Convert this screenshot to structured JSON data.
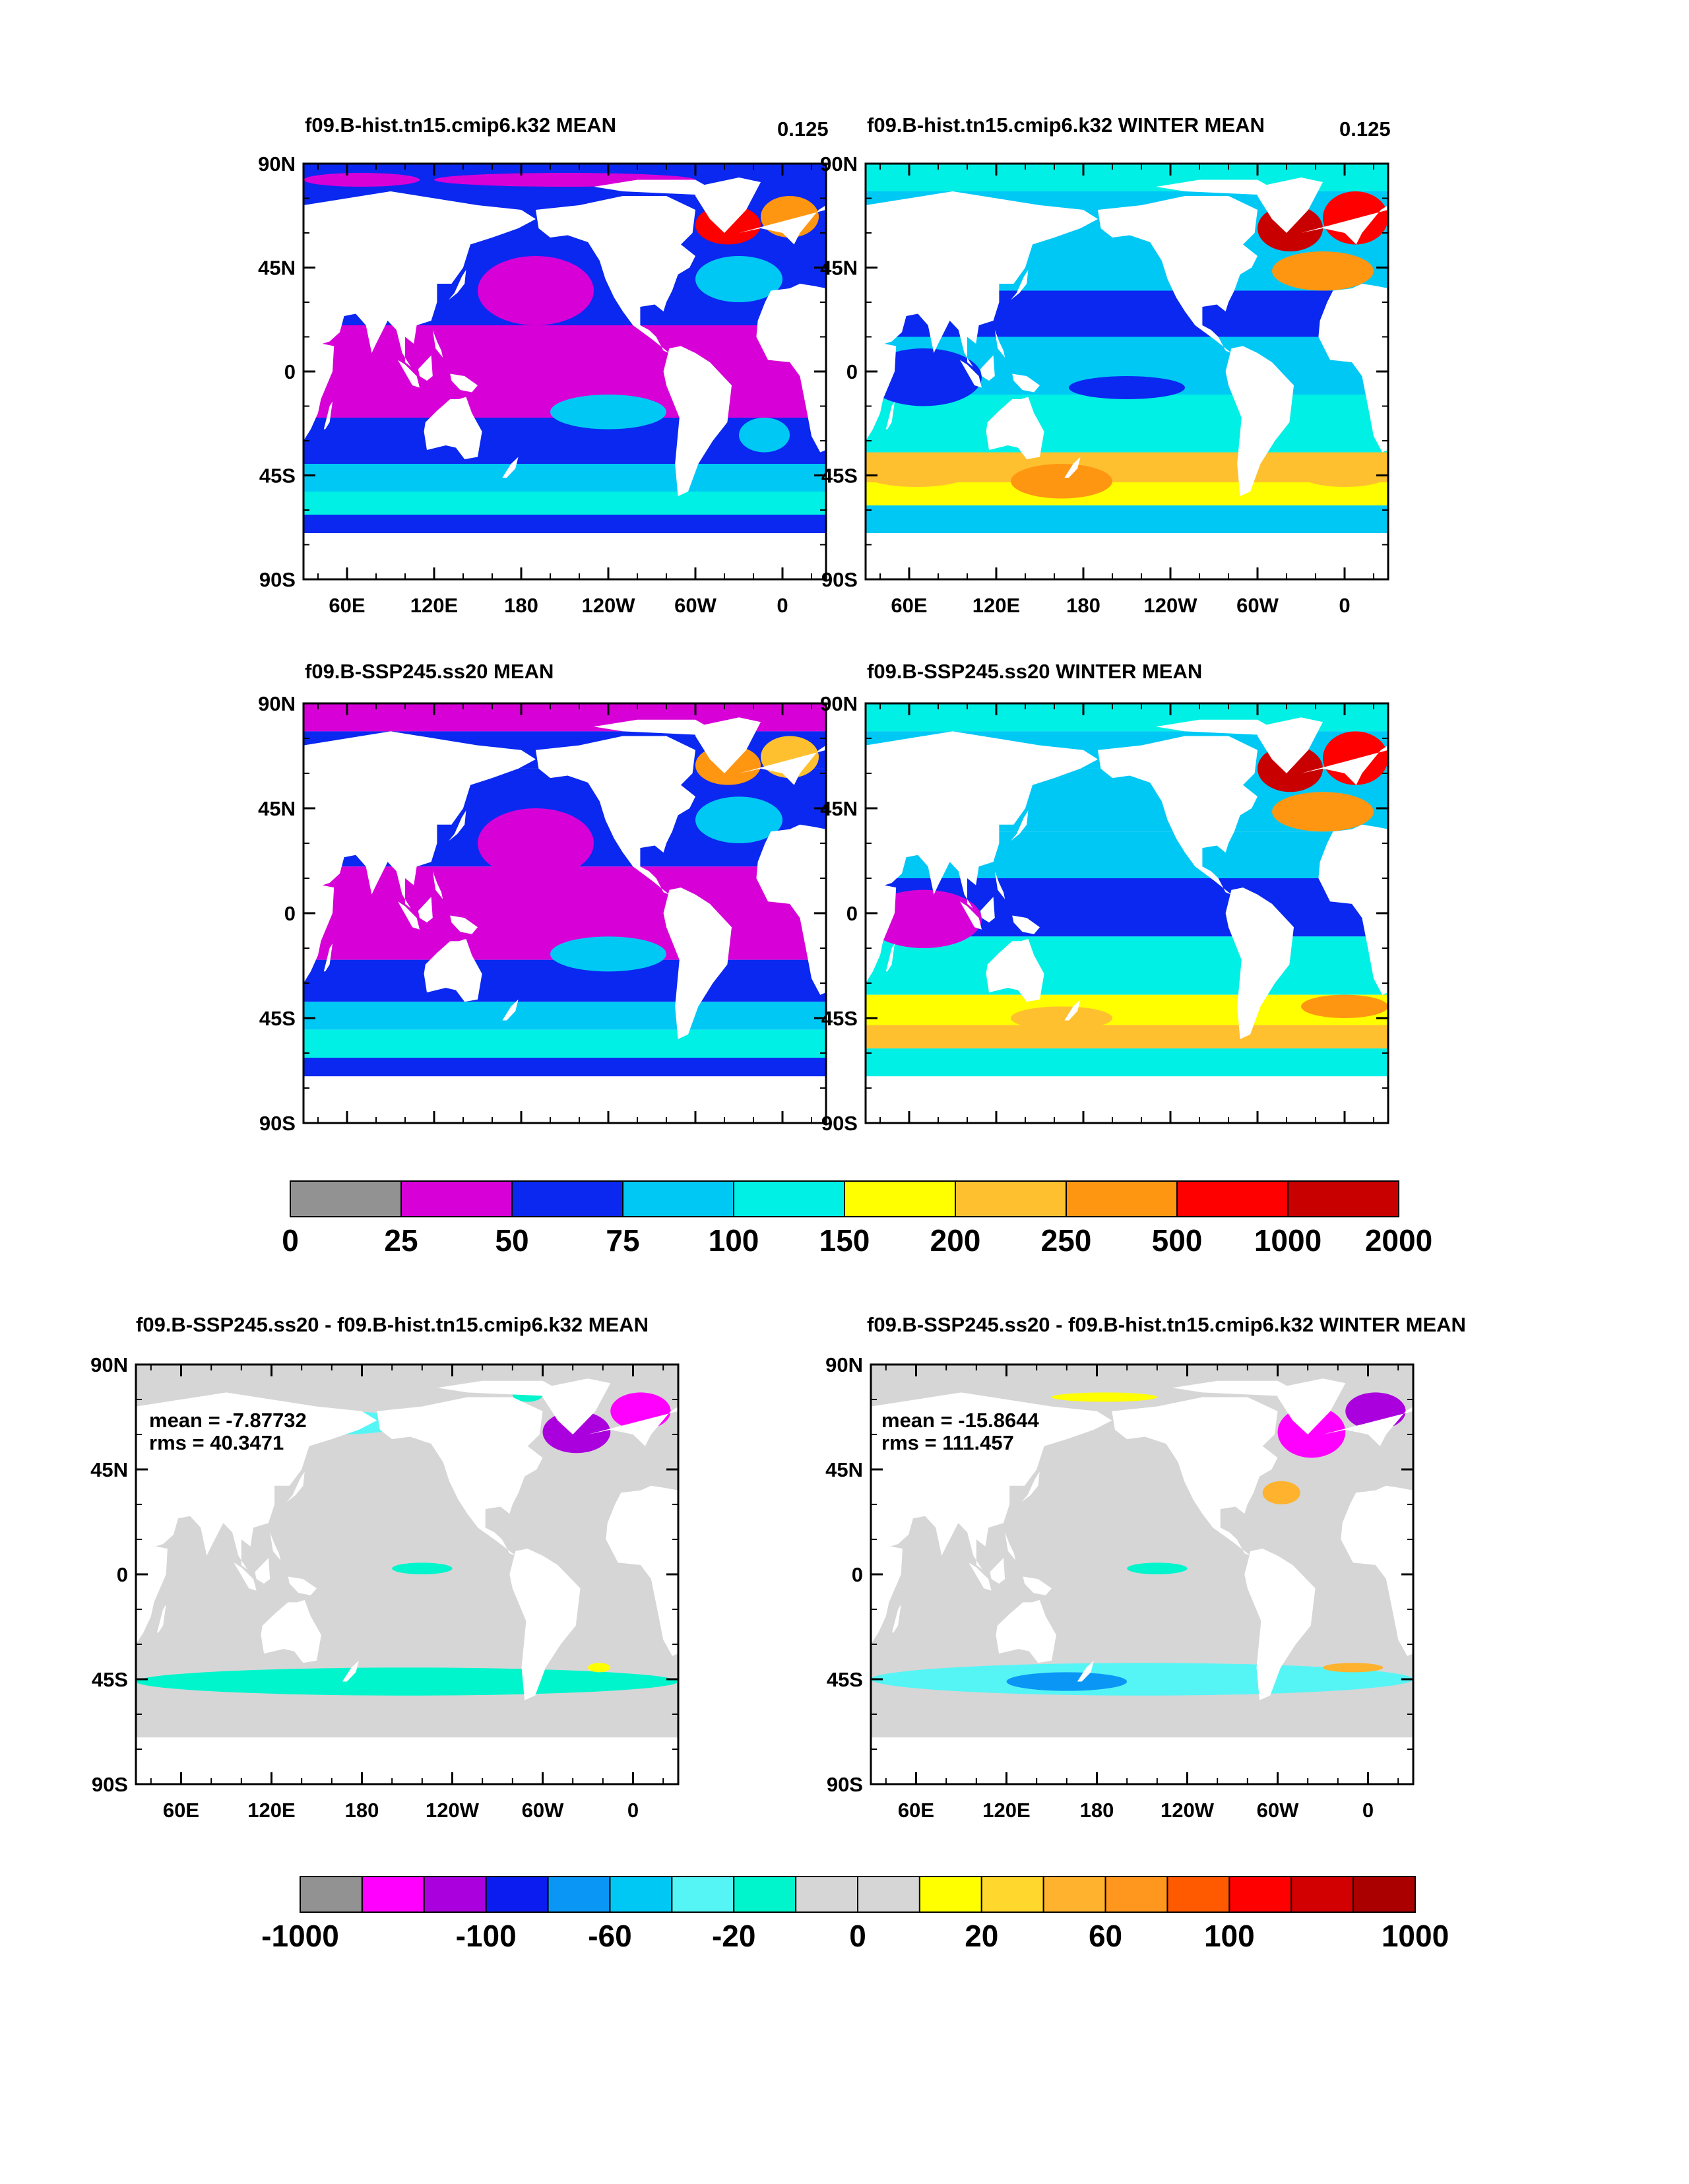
{
  "panels": [
    {
      "id": "p1",
      "title": "f09.B-hist.tn15.cmip6.k32 MEAN",
      "corner": "0.125",
      "scheme": "abs",
      "variant": "annual"
    },
    {
      "id": "p2",
      "title": "f09.B-hist.tn15.cmip6.k32 WINTER MEAN",
      "corner": "0.125",
      "scheme": "abs",
      "variant": "winter"
    },
    {
      "id": "p3",
      "title": "f09.B-SSP245.ss20 MEAN",
      "corner": "",
      "scheme": "abs",
      "variant": "annual2"
    },
    {
      "id": "p4",
      "title": "f09.B-SSP245.ss20 WINTER MEAN",
      "corner": "",
      "scheme": "abs",
      "variant": "winter2"
    },
    {
      "id": "p5",
      "title": "f09.B-SSP245.ss20 - f09.B-hist.tn15.cmip6.k32 MEAN",
      "corner": "",
      "scheme": "diff",
      "variant": "dannual",
      "stats": {
        "mean": "mean = -7.87732",
        "rms": "rms = 40.3471"
      }
    },
    {
      "id": "p6",
      "title": "f09.B-SSP245.ss20 - f09.B-hist.tn15.cmip6.k32 WINTER MEAN",
      "corner": "",
      "scheme": "diff",
      "variant": "dwinter",
      "stats": {
        "mean": "mean = -15.8644",
        "rms": "rms = 111.457"
      }
    }
  ],
  "axes": {
    "lat_labels": [
      "90N",
      "45N",
      "0",
      "45S",
      "90S"
    ],
    "lat_values": [
      90,
      45,
      0,
      -45,
      -90
    ],
    "lon_labels": [
      "60E",
      "120E",
      "180",
      "120W",
      "60W",
      "0"
    ],
    "lon_values": [
      60,
      120,
      180,
      240,
      300,
      360
    ],
    "lon_range": [
      30,
      390
    ],
    "lat_range": [
      -90,
      90
    ]
  },
  "colorbar_abs": {
    "colors": [
      "#929292",
      "#d700d7",
      "#0a28f0",
      "#00c8f5",
      "#00f0e6",
      "#ffff00",
      "#ffc030",
      "#ff9612",
      "#ff0000",
      "#c80000"
    ],
    "labels": [
      "0",
      "25",
      "50",
      "75",
      "100",
      "150",
      "200",
      "250",
      "500",
      "1000",
      "2000"
    ]
  },
  "colorbar_diff": {
    "colors": [
      "#929292",
      "#ff00ff",
      "#aa00dd",
      "#0a1cf0",
      "#0a96f5",
      "#00c8f5",
      "#55f5f5",
      "#00f5cc",
      "#d6d6d6",
      "#d6d6d6",
      "#ffff00",
      "#ffd72d",
      "#ffb22d",
      "#ff961e",
      "#ff5a00",
      "#ff0000",
      "#d20000",
      "#aa0000"
    ],
    "labels": [
      "-1000",
      "-100",
      "-60",
      "-20",
      "0",
      "20",
      "60",
      "100",
      "1000"
    ]
  },
  "colors": {
    "land": "#ffffff",
    "ocean_zero_change": "#d6d6d6"
  }
}
